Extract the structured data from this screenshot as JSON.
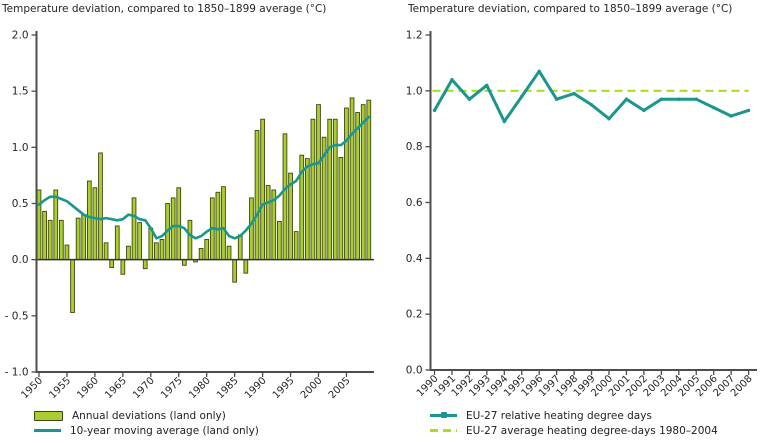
{
  "styles": {
    "background": "#ffffff",
    "axis_color": "#4d4d4d",
    "zero_line_color": "#333333",
    "text_color": "#262626",
    "bar_fill": "#a9ce2d",
    "bar_border": "#3f4712",
    "teal_line": "#1b968e",
    "dashed_green": "#a6e01f"
  },
  "chart_data": [
    {
      "type": "bar",
      "title": "Temperature deviation, compared to 1850–1899 average (°C)",
      "xlabel": "",
      "ylabel": "",
      "ylim": [
        -1.0,
        2.0
      ],
      "grid": false,
      "legend_position": "bottom-left",
      "yticks": [
        2.0,
        1.5,
        1.0,
        0.5,
        0.0,
        -0.5,
        -1.0
      ],
      "ytick_labels": [
        "2.0",
        "1.5",
        "1.0",
        "0.5",
        "0.0",
        "- 0.5",
        "- 1.0"
      ],
      "xtick_years": [
        1950,
        1955,
        1960,
        1965,
        1970,
        1975,
        1980,
        1985,
        1990,
        1995,
        2000,
        2005
      ],
      "years": [
        1950,
        1951,
        1952,
        1953,
        1954,
        1955,
        1956,
        1957,
        1958,
        1959,
        1960,
        1961,
        1962,
        1963,
        1964,
        1965,
        1966,
        1967,
        1968,
        1969,
        1970,
        1971,
        1972,
        1973,
        1974,
        1975,
        1976,
        1977,
        1978,
        1979,
        1980,
        1981,
        1982,
        1983,
        1984,
        1985,
        1986,
        1987,
        1988,
        1989,
        1990,
        1991,
        1992,
        1993,
        1994,
        1995,
        1996,
        1997,
        1998,
        1999,
        2000,
        2001,
        2002,
        2003,
        2004,
        2005,
        2006,
        2007,
        2008,
        2009
      ],
      "series": [
        {
          "name": "Annual deviations (land only)",
          "kind": "bar",
          "color": "#a9ce2d",
          "border_color": "#3f4712",
          "values": [
            0.62,
            0.43,
            0.35,
            0.62,
            0.35,
            0.13,
            -0.47,
            0.37,
            0.4,
            0.7,
            0.64,
            0.95,
            0.15,
            -0.07,
            0.3,
            -0.13,
            0.12,
            0.55,
            0.33,
            -0.08,
            0.28,
            0.15,
            0.18,
            0.5,
            0.55,
            0.64,
            -0.05,
            0.35,
            -0.02,
            0.1,
            0.18,
            0.55,
            0.6,
            0.65,
            0.12,
            -0.2,
            0.22,
            -0.12,
            0.55,
            1.15,
            1.25,
            0.66,
            0.62,
            0.34,
            1.12,
            0.77,
            0.25,
            0.93,
            0.9,
            1.25,
            1.38,
            1.09,
            1.25,
            1.25,
            0.91,
            1.35,
            1.44,
            1.31,
            1.38,
            1.42
          ]
        },
        {
          "name": "10-year moving average (land only)",
          "kind": "line",
          "color": "#1b968e",
          "values": [
            0.49,
            0.53,
            0.56,
            0.56,
            0.54,
            0.52,
            0.48,
            0.44,
            0.4,
            0.38,
            0.37,
            0.36,
            0.37,
            0.36,
            0.35,
            0.36,
            0.4,
            0.39,
            0.36,
            0.35,
            0.28,
            0.19,
            0.21,
            0.26,
            0.3,
            0.3,
            0.28,
            0.22,
            0.19,
            0.21,
            0.25,
            0.28,
            0.27,
            0.28,
            0.21,
            0.19,
            0.21,
            0.26,
            0.32,
            0.4,
            0.49,
            0.51,
            0.53,
            0.57,
            0.63,
            0.67,
            0.7,
            0.78,
            0.83,
            0.85,
            0.86,
            0.93,
            1.0,
            1.02,
            1.02,
            1.06,
            1.12,
            1.17,
            1.22,
            1.27
          ]
        }
      ]
    },
    {
      "type": "line",
      "title": "Temperature deviation, compared to 1850–1899 average (°C)",
      "xlabel": "",
      "ylabel": "",
      "ylim": [
        0.0,
        1.2
      ],
      "grid": false,
      "legend_position": "bottom-left",
      "yticks": [
        1.2,
        1.0,
        0.8,
        0.6,
        0.4,
        0.2,
        0.0
      ],
      "ytick_labels": [
        "1.2",
        "1.0",
        "0.8",
        "0.6",
        "0.4",
        "0.2",
        "0.0"
      ],
      "years": [
        1990,
        1991,
        1992,
        1993,
        1994,
        1995,
        1996,
        1997,
        1998,
        1999,
        2000,
        2001,
        2002,
        2003,
        2004,
        2005,
        2006,
        2007,
        2008
      ],
      "series": [
        {
          "name": "EU-27 relative heating degree days",
          "kind": "line-marker",
          "color": "#1b968e",
          "values": [
            0.93,
            1.04,
            0.97,
            1.02,
            0.89,
            0.98,
            1.07,
            0.97,
            0.99,
            0.95,
            0.9,
            0.97,
            0.93,
            0.97,
            0.97,
            0.97,
            0.94,
            0.91,
            0.93
          ]
        },
        {
          "name": "EU-27 average heating degree-days 1980–2004",
          "kind": "dashed-constant",
          "color": "#a6e01f",
          "value": 1.0
        }
      ]
    }
  ]
}
